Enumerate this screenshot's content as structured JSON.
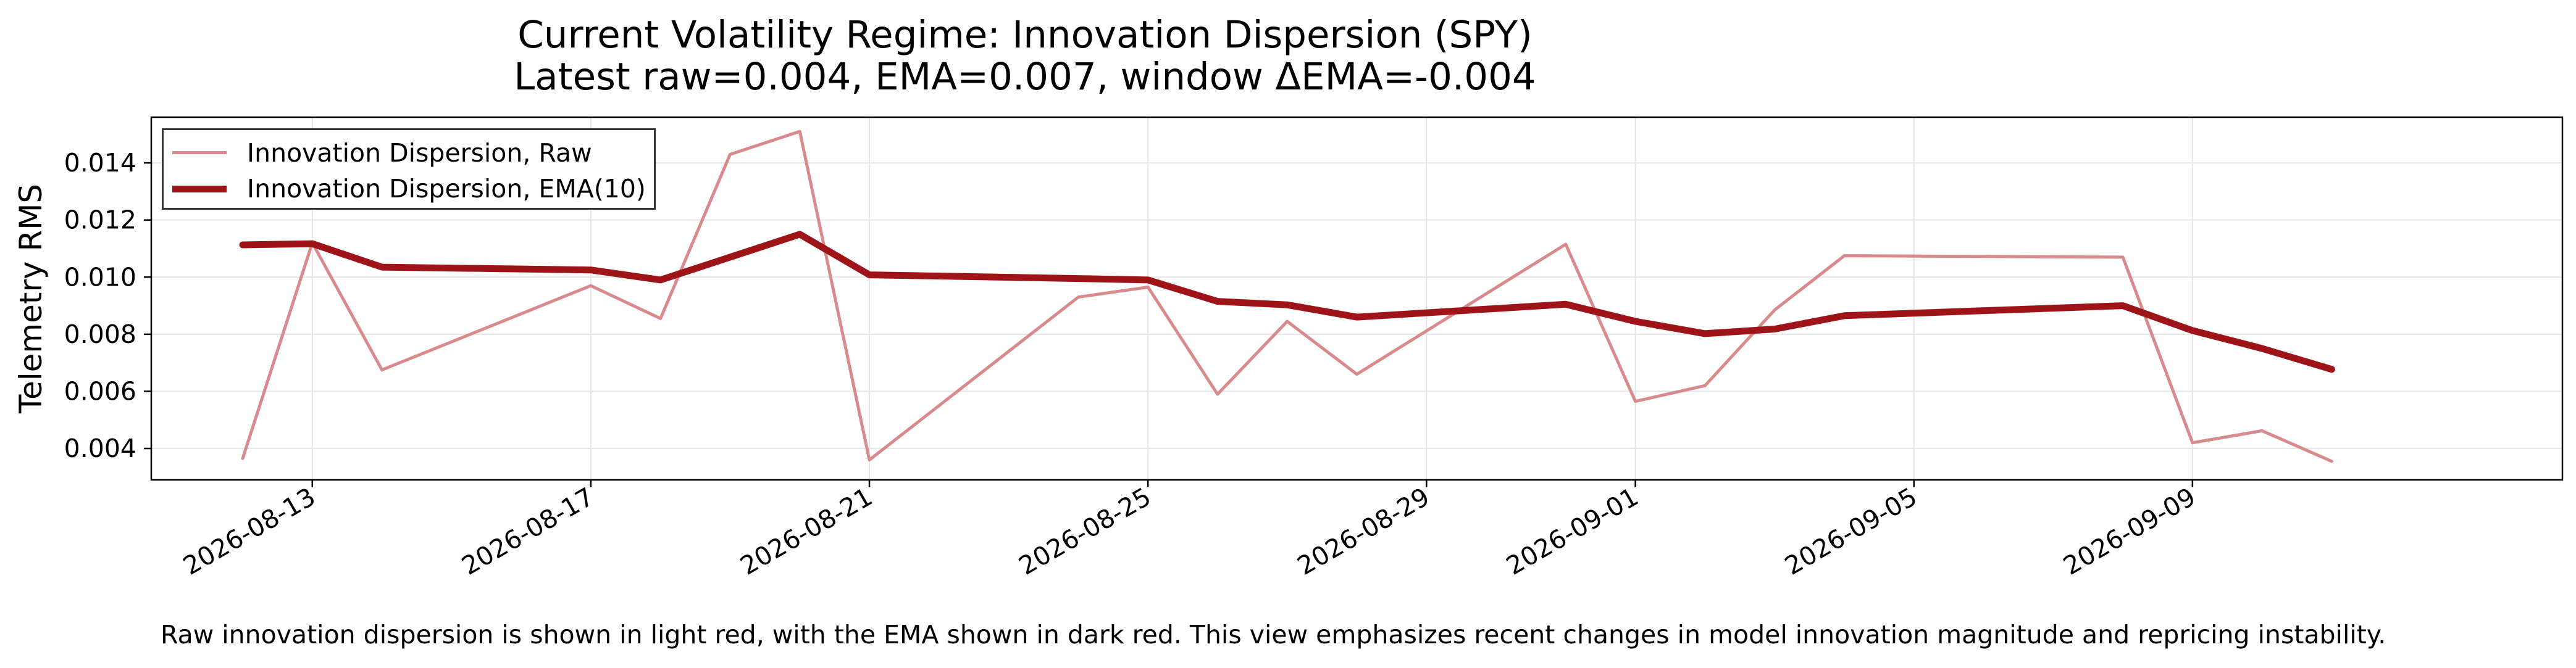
{
  "chart_data": {
    "type": "line",
    "title": "Current Volatility Regime: Innovation Dispersion (SPY)",
    "subtitle": "Latest raw=0.004, EMA=0.007, window ΔEMA=-0.004",
    "xlabel": "",
    "ylabel": "Telemetry RMS",
    "x_ticks": [
      "2026-08-13",
      "2026-08-17",
      "2026-08-21",
      "2026-08-25",
      "2026-08-29",
      "2026-09-01",
      "2026-09-05",
      "2026-09-09"
    ],
    "y_ticks": [
      "0.004",
      "0.006",
      "0.008",
      "0.010",
      "0.012",
      "0.014"
    ],
    "xlim": [
      "2026-08-10T16:30",
      "2026-09-14T07:30"
    ],
    "ylim": [
      0.0029,
      0.0156
    ],
    "grid": true,
    "legend_position": "upper-left",
    "x": [
      "2026-08-12",
      "2026-08-13",
      "2026-08-14",
      "2026-08-17",
      "2026-08-18",
      "2026-08-19",
      "2026-08-20",
      "2026-08-21",
      "2026-08-24",
      "2026-08-25",
      "2026-08-26",
      "2026-08-27",
      "2026-08-28",
      "2026-08-31",
      "2026-09-01",
      "2026-09-02",
      "2026-09-03",
      "2026-09-04",
      "2026-09-08",
      "2026-09-09",
      "2026-09-10",
      "2026-09-11"
    ],
    "series": [
      {
        "name": "Innovation Dispersion, Raw",
        "color": "#d98a8c",
        "values": [
          0.00365,
          0.0112,
          0.00675,
          0.0097,
          0.00855,
          0.0143,
          0.0151,
          0.0036,
          0.0093,
          0.00965,
          0.0059,
          0.00845,
          0.0066,
          0.01115,
          0.00565,
          0.0062,
          0.00885,
          0.01075,
          0.0107,
          0.0042,
          0.00462,
          0.00355
        ]
      },
      {
        "name": "Innovation Dispersion, EMA(10)",
        "color": "#9e1419",
        "values": [
          0.01113,
          0.01117,
          0.01035,
          0.01025,
          0.0099,
          0.0107,
          0.0115,
          0.01008,
          0.00995,
          0.0099,
          0.00915,
          0.00903,
          0.0086,
          0.00905,
          0.00845,
          0.00802,
          0.00818,
          0.00865,
          0.009,
          0.00813,
          0.0075,
          0.00677
        ]
      }
    ]
  },
  "caption": "Raw innovation dispersion is shown in light red, with the EMA shown in dark red. This view emphasizes recent changes in model innovation magnitude and repricing instability."
}
